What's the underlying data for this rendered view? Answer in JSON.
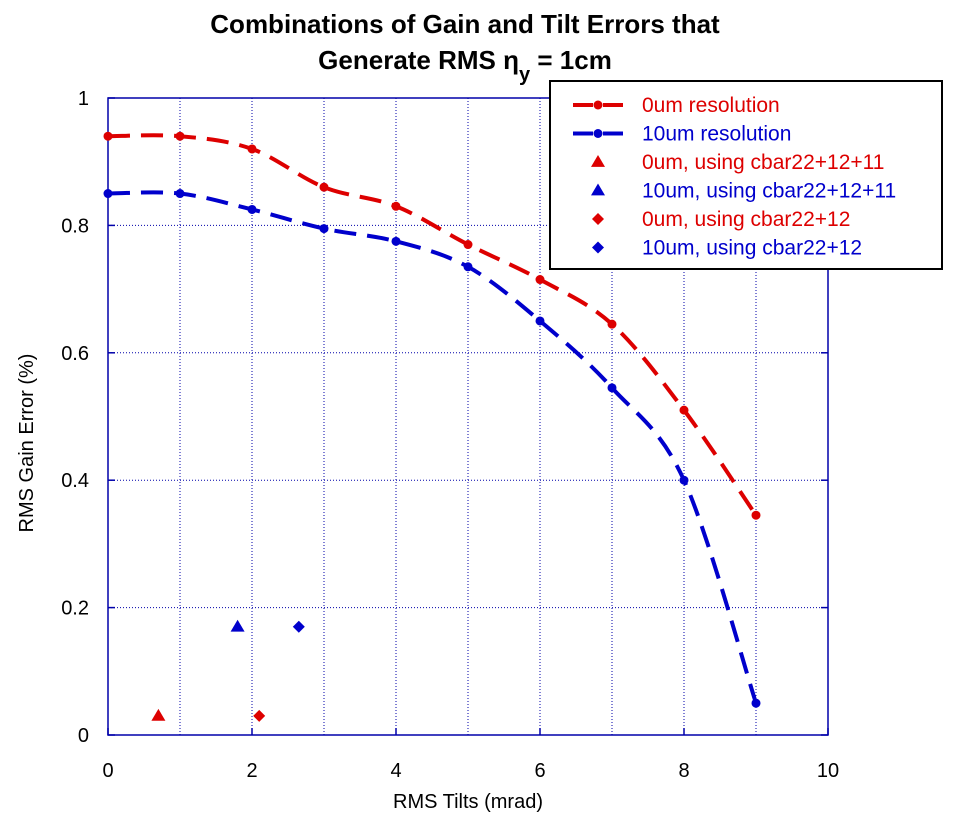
{
  "chart_data": {
    "type": "scatter",
    "title_line1": "Combinations of Gain and Tilt Errors that",
    "title_line2_prefix": "Generate RMS ",
    "title_symbol": "η",
    "title_subscript": "y",
    "title_line2_suffix": " = 1cm",
    "xlabel": "RMS Tilts (mrad)",
    "ylabel": "RMS Gain Error (%)",
    "xlim": [
      0,
      10
    ],
    "ylim": [
      0,
      1
    ],
    "x_ticks": [
      "0",
      "2",
      "4",
      "6",
      "8",
      "10"
    ],
    "y_ticks": [
      "0",
      "0.2",
      "0.4",
      "0.6",
      "0.8",
      "1"
    ],
    "grid": true,
    "legend_position": "top-right",
    "series": [
      {
        "name": "0um resolution",
        "color": "#dd0000",
        "marker": "circle",
        "line": "dashed",
        "x": [
          0,
          1,
          2,
          3,
          4,
          5,
          6,
          7,
          8,
          9
        ],
        "y": [
          0.94,
          0.94,
          0.92,
          0.86,
          0.83,
          0.77,
          0.715,
          0.645,
          0.51,
          0.345
        ]
      },
      {
        "name": "10um resolution",
        "color": "#0000cc",
        "marker": "circle",
        "line": "dashed",
        "x": [
          0,
          1,
          2,
          3,
          4,
          5,
          6,
          7,
          8,
          9
        ],
        "y": [
          0.85,
          0.85,
          0.825,
          0.795,
          0.775,
          0.735,
          0.65,
          0.545,
          0.4,
          0.05
        ]
      },
      {
        "name": "0um, using cbar22+12+11",
        "color": "#dd0000",
        "marker": "triangle",
        "line": "none",
        "x": [
          0.7
        ],
        "y": [
          0.03
        ]
      },
      {
        "name": "10um, using cbar22+12+11",
        "color": "#0000cc",
        "marker": "triangle",
        "line": "none",
        "x": [
          1.8
        ],
        "y": [
          0.17
        ]
      },
      {
        "name": "0um, using cbar22+12",
        "color": "#dd0000",
        "marker": "diamond",
        "line": "none",
        "x": [
          2.1
        ],
        "y": [
          0.03
        ]
      },
      {
        "name": "10um, using cbar22+12",
        "color": "#0000cc",
        "marker": "diamond",
        "line": "none",
        "x": [
          2.65
        ],
        "y": [
          0.17
        ]
      }
    ]
  }
}
